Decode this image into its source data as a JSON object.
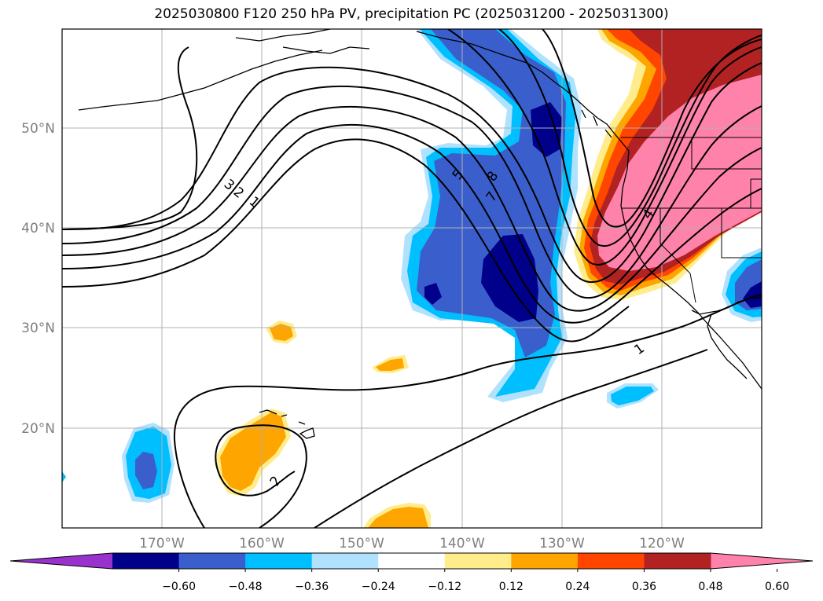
{
  "title": "2025030800 F120 250 hPa PV, precipitation PC (2025031200 - 2025031300)",
  "map": {
    "lon_range": [
      -180,
      -110
    ],
    "lat_range": [
      10,
      60
    ],
    "lat_ticks": [
      "50°N",
      "40°N",
      "30°N",
      "20°N"
    ],
    "lon_ticks": [
      "170°W",
      "160°W",
      "150°W",
      "140°W",
      "130°W",
      "120°W"
    ],
    "grid": true,
    "contour_labels": [
      "3",
      "2",
      "1",
      "5",
      "8",
      "7",
      "1",
      "4",
      "2"
    ]
  },
  "colorbar": {
    "ticks": [
      "−0.60",
      "−0.48",
      "−0.36",
      "−0.24",
      "−0.12",
      "0.12",
      "0.24",
      "0.36",
      "0.48",
      "0.60"
    ],
    "colors": [
      "#9932cc",
      "#00008b",
      "#3a5fcd",
      "#00bfff",
      "#b0e2ff",
      "#ffffff",
      "#ffec8b",
      "#ffa500",
      "#ff4500",
      "#b22222",
      "#ff82ab"
    ]
  }
}
